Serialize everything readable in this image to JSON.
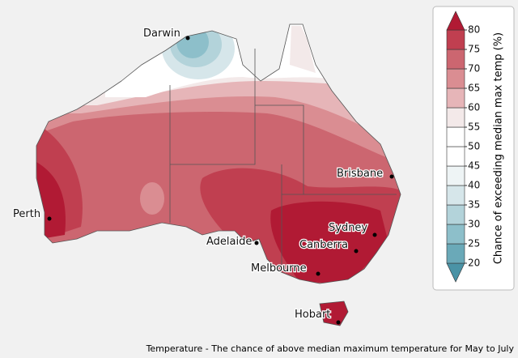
{
  "legend": {
    "title": "Chance of exceeding median max temp (%)",
    "ticks": [
      20,
      25,
      30,
      35,
      40,
      45,
      50,
      55,
      60,
      65,
      70,
      75,
      80
    ],
    "colors": [
      "#4a93a6",
      "#6aa9b8",
      "#8dbfca",
      "#b3d3da",
      "#d6e6ea",
      "#eef4f5",
      "#ffffff",
      "#ffffff",
      "#f3e9e9",
      "#e6b5b8",
      "#da8d92",
      "#cc6670",
      "#c03f50",
      "#b11a34"
    ]
  },
  "cities": [
    "Darwin",
    "Brisbane",
    "Perth",
    "Adelaide",
    "Sydney",
    "Canberra",
    "Melbourne",
    "Hobart"
  ],
  "caption": "Temperature - The chance of above median maximum temperature for May to July"
}
